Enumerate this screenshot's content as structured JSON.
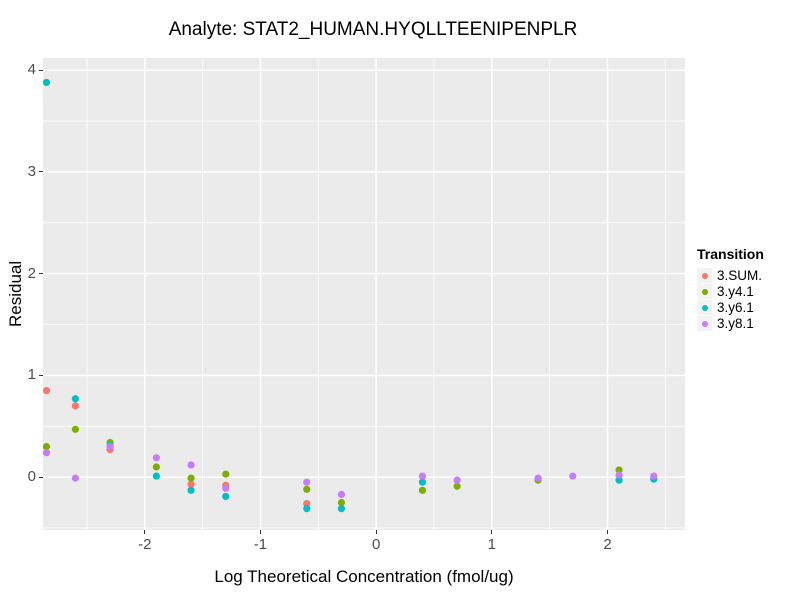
{
  "title": "Analyte: STAT2_HUMAN.HYQLLTEENIPENPLR",
  "chart_data": {
    "type": "scatter",
    "title": "Analyte: STAT2_HUMAN.HYQLLTEENIPENPLR",
    "xlabel": "Log Theoretical Concentration (fmol/ug)",
    "ylabel": "Residual",
    "legend_title": "Transition",
    "legend_position": "right",
    "grid": true,
    "panel_bg": "#EBEBEB",
    "grid_color": "#FFFFFF",
    "x_domain": [
      -2.88,
      2.67
    ],
    "y_domain": [
      -0.52,
      4.12
    ],
    "x_ticks": [
      -2,
      -1,
      0,
      1,
      2
    ],
    "y_ticks": [
      0,
      1,
      2,
      3,
      4
    ],
    "x_minor_ticks": [
      -2.5,
      -1.5,
      -0.5,
      0.5,
      1.5,
      2.5
    ],
    "y_minor_ticks": [
      -0.5,
      0.5,
      1.5,
      2.5,
      3.5
    ],
    "point_radius": 3.6,
    "series": [
      {
        "name": "3.SUM.",
        "color": "#F8766D",
        "points": [
          [
            -2.85,
            0.85
          ],
          [
            -2.6,
            0.7
          ],
          [
            -2.3,
            0.27
          ],
          [
            -1.6,
            -0.07
          ],
          [
            -1.3,
            -0.08
          ],
          [
            -0.6,
            -0.26
          ]
        ]
      },
      {
        "name": "3.y4.1",
        "color": "#7CAE00",
        "points": [
          [
            -2.85,
            0.3
          ],
          [
            -2.6,
            0.47
          ],
          [
            -2.3,
            0.34
          ],
          [
            -1.9,
            0.1
          ],
          [
            -1.6,
            -0.01
          ],
          [
            -1.3,
            0.03
          ],
          [
            -0.6,
            -0.12
          ],
          [
            -0.3,
            -0.25
          ],
          [
            0.4,
            -0.13
          ],
          [
            0.7,
            -0.09
          ],
          [
            1.4,
            -0.03
          ],
          [
            2.1,
            0.07
          ]
        ]
      },
      {
        "name": "3.y6.1",
        "color": "#00BFC4",
        "points": [
          [
            -2.85,
            3.88
          ],
          [
            -2.6,
            0.77
          ],
          [
            -2.3,
            0.31
          ],
          [
            -1.9,
            0.01
          ],
          [
            -1.6,
            -0.13
          ],
          [
            -1.3,
            -0.19
          ],
          [
            -0.6,
            -0.31
          ],
          [
            -0.3,
            -0.31
          ],
          [
            0.4,
            -0.05
          ],
          [
            2.1,
            -0.03
          ],
          [
            2.4,
            -0.02
          ]
        ]
      },
      {
        "name": "3.y8.1",
        "color": "#C77CFF",
        "points": [
          [
            -2.85,
            0.24
          ],
          [
            -2.6,
            -0.01
          ],
          [
            -2.3,
            0.3
          ],
          [
            -1.9,
            0.19
          ],
          [
            -1.6,
            0.12
          ],
          [
            -1.3,
            -0.11
          ],
          [
            -0.6,
            -0.05
          ],
          [
            -0.3,
            -0.17
          ],
          [
            0.4,
            0.01
          ],
          [
            0.7,
            -0.03
          ],
          [
            1.4,
            -0.01
          ],
          [
            1.7,
            0.01
          ],
          [
            2.1,
            0.02
          ],
          [
            2.4,
            0.01
          ]
        ]
      }
    ]
  }
}
